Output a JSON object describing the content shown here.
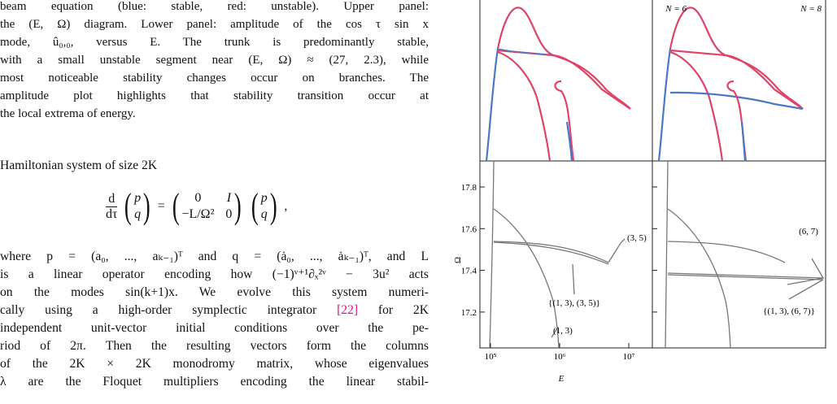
{
  "caption_lines": [
    "beam equation (blue: stable, red: unstable). Upper panel:",
    "the (E, Ω) diagram. Lower panel: amplitude of the cos τ sin x",
    "mode, û₀,₀, versus E. The trunk is predominantly stable,",
    "with a small unstable segment near (E, Ω) ≈ (27, 2.3), while",
    "most noticeable stability changes occur on branches. The",
    "amplitude plot highlights that stability transition occur at",
    "the local extrema of energy."
  ],
  "body": {
    "intro": "Hamiltonian system of size 2K",
    "equation": {
      "d_top": "d",
      "d_bottom": "dτ",
      "vector": [
        "p",
        "q"
      ],
      "equals": "=",
      "matrix": [
        "0",
        "I",
        "−L/Ω²",
        "0"
      ],
      "tail": ","
    },
    "lines": [
      "where p = (a₀, ..., aₖ₋₁)ᵀ and q = (ȧ₀, ..., ȧₖ₋₁)ᵀ, and L",
      "is a linear operator encoding how (−1)ᵛ⁺¹∂ₓ²ᵛ − 3u² acts",
      "on the modes sin(k+1)x. We evolve this system numeri-",
      "independent unit-vector initial conditions over the pe-",
      "riod of 2π. Then the resulting vectors form the columns",
      "of the 2K × 2K monodromy matrix, whose eigenvalues",
      "λ are the Floquet multipliers encoding the linear stabil-"
    ],
    "cite_line": {
      "before": "cally using a high-order symplectic integrator ",
      "cite": "[22]",
      "after": " for 2K"
    }
  },
  "figure": {
    "panels": [
      "N = 6",
      "N = 8"
    ],
    "y_label": "Ω",
    "x_label": "E",
    "yticks": [
      17.2,
      17.4,
      17.6,
      17.8
    ],
    "xticks": [
      {
        "value": 100000,
        "label": "10⁵"
      },
      {
        "value": 1000000,
        "label": "10⁶"
      },
      {
        "value": 10000000,
        "label": "10⁷"
      }
    ],
    "annotations": [
      "(3, 5)",
      "{(1, 3), (3, 5)}",
      "(1, 3)",
      "(6, 7)",
      "{(1, 3), (6, 7)}"
    ]
  }
}
